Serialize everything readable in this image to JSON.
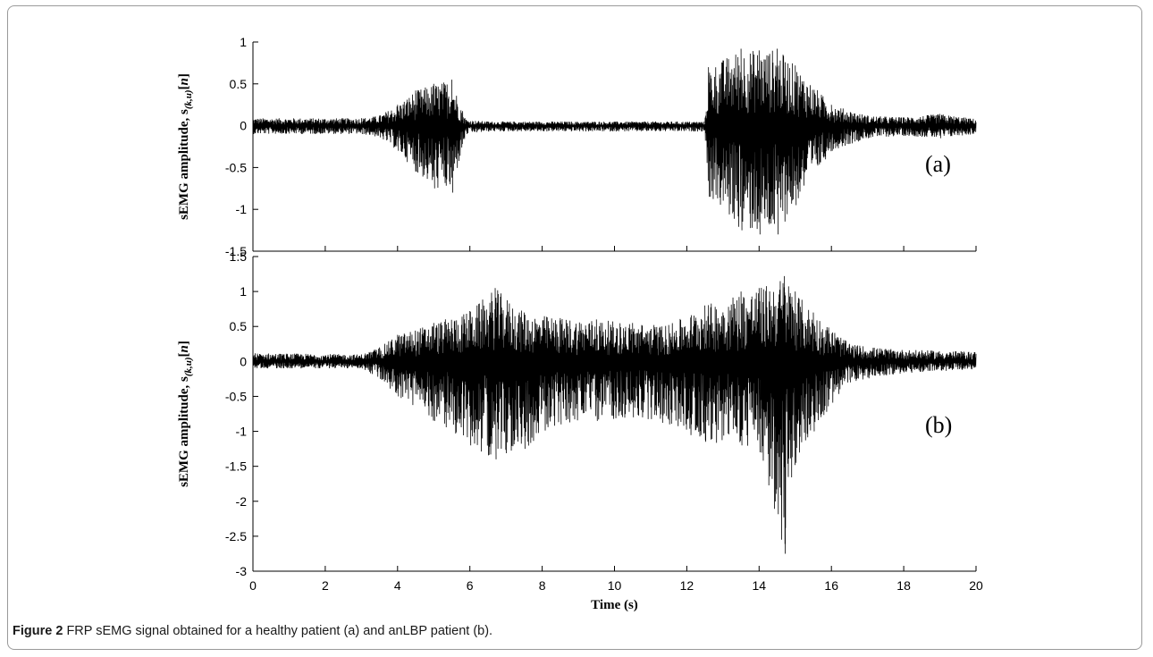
{
  "caption": {
    "label": "Figure 2",
    "text": "FRP sEMG signal obtained for a healthy patient (a) and anLBP patient (b)."
  },
  "chart_data": [
    {
      "type": "line",
      "panel_label": "(a)",
      "xlabel": "",
      "ylabel": "sEMG amplitude, s(k,u)[n]",
      "xlim": [
        0,
        20
      ],
      "ylim": [
        -1.5,
        1
      ],
      "x_ticks": [
        "0",
        "2",
        "4",
        "6",
        "8",
        "10",
        "12",
        "14",
        "16",
        "18",
        "20"
      ],
      "y_ticks": [
        "1",
        "0.5",
        "0",
        "-0.5",
        "-1",
        "-1.5"
      ],
      "y_tick_values": [
        1,
        0.5,
        0,
        -0.5,
        -1,
        -1.5
      ],
      "series": [
        {
          "color": "#000000",
          "envelope": {
            "x": [
              0,
              3,
              3.5,
              4.0,
              4.5,
              5.0,
              5.5,
              5.9,
              6.5,
              12.5,
              12.6,
              13.5,
              14.0,
              14.5,
              15.0,
              16.0,
              17.0,
              18.0,
              19.0,
              20.0
            ],
            "max": [
              0.09,
              0.09,
              0.12,
              0.25,
              0.42,
              0.5,
              0.55,
              0.07,
              0.05,
              0.05,
              0.7,
              0.92,
              0.9,
              0.92,
              0.72,
              0.25,
              0.12,
              0.1,
              0.14,
              0.08
            ],
            "min": [
              -0.1,
              -0.1,
              -0.14,
              -0.3,
              -0.55,
              -0.75,
              -0.8,
              -0.1,
              -0.07,
              -0.07,
              -0.85,
              -1.25,
              -1.3,
              -1.3,
              -0.95,
              -0.3,
              -0.15,
              -0.12,
              -0.15,
              -0.1
            ]
          }
        }
      ]
    },
    {
      "type": "line",
      "panel_label": "(b)",
      "xlabel": "Time (s)",
      "ylabel": "sEMG amplitude, s(k,u)[n]",
      "xlim": [
        0,
        20
      ],
      "ylim": [
        -3,
        1.5
      ],
      "x_ticks": [
        "0",
        "2",
        "4",
        "6",
        "8",
        "10",
        "12",
        "14",
        "16",
        "18",
        "20"
      ],
      "y_ticks": [
        "1.5",
        "1",
        "0.5",
        "0",
        "-0.5",
        "-1",
        "-1.5",
        "-2",
        "-2.5",
        "-3"
      ],
      "y_tick_values": [
        1.5,
        1,
        0.5,
        0,
        -0.5,
        -1,
        -1.5,
        -2,
        -2.5,
        -3
      ],
      "series": [
        {
          "color": "#000000",
          "envelope": {
            "x": [
              0,
              3,
              3.5,
              4.0,
              5.0,
              6.0,
              6.7,
              7.5,
              8.5,
              9.5,
              10.5,
              11.5,
              12.5,
              13.5,
              14.0,
              14.7,
              15.0,
              15.5,
              16.5,
              17.5,
              18.5,
              20.0
            ],
            "max": [
              0.12,
              0.1,
              0.2,
              0.38,
              0.55,
              0.72,
              1.05,
              0.7,
              0.62,
              0.6,
              0.55,
              0.52,
              0.8,
              1.0,
              1.05,
              1.22,
              1.0,
              0.7,
              0.25,
              0.18,
              0.16,
              0.14
            ],
            "min": [
              -0.1,
              -0.1,
              -0.25,
              -0.5,
              -0.85,
              -1.2,
              -1.4,
              -1.25,
              -0.9,
              -0.85,
              -0.8,
              -0.9,
              -1.15,
              -1.2,
              -1.3,
              -2.75,
              -1.45,
              -1.0,
              -0.3,
              -0.2,
              -0.15,
              -0.12
            ]
          }
        }
      ]
    }
  ]
}
